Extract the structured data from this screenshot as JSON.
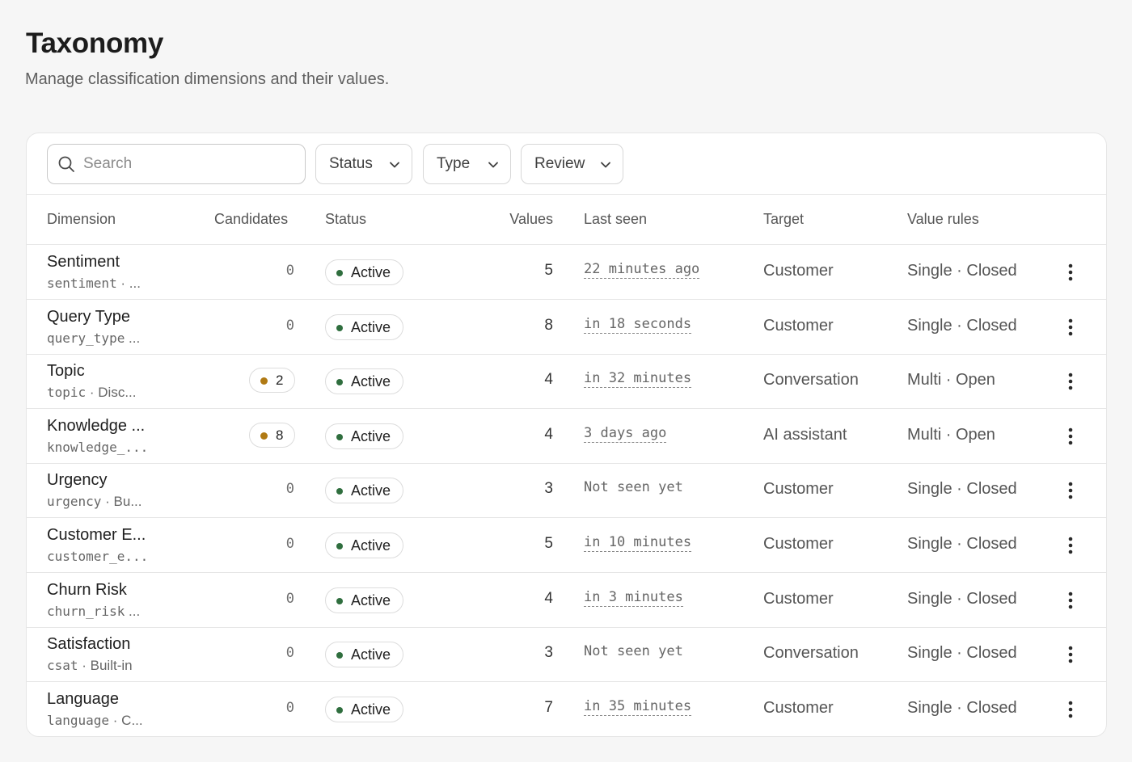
{
  "header": {
    "title": "Taxonomy",
    "subtitle": "Manage classification dimensions and their values."
  },
  "toolbar": {
    "search_placeholder": "Search",
    "filters": [
      "Status",
      "Type",
      "Review"
    ]
  },
  "table": {
    "columns": [
      "Dimension",
      "Candidates",
      "Status",
      "Values",
      "Last seen",
      "Target",
      "Value rules"
    ],
    "rows": [
      {
        "name": "Sentiment",
        "slug": "sentiment",
        "sub_suffix": " · ...",
        "candidates": "0",
        "candidate_pill": false,
        "status": "Active",
        "values": "5",
        "last_seen": "22 minutes ago",
        "last_seen_dashed": true,
        "target": "Customer",
        "rules": "Single · Closed"
      },
      {
        "name": "Query Type",
        "slug": "query_type",
        "sub_suffix": " ...",
        "candidates": "0",
        "candidate_pill": false,
        "status": "Active",
        "values": "8",
        "last_seen": "in 18 seconds",
        "last_seen_dashed": true,
        "target": "Customer",
        "rules": "Single · Closed"
      },
      {
        "name": "Topic",
        "slug": "topic",
        "sub_suffix": " · Disc...",
        "candidates": "2",
        "candidate_pill": true,
        "status": "Active",
        "values": "4",
        "last_seen": "in 32 minutes",
        "last_seen_dashed": true,
        "target": "Conversation",
        "rules": "Multi · Open"
      },
      {
        "name": "Knowledge ...",
        "slug": "knowledge_...",
        "sub_suffix": "",
        "candidates": "8",
        "candidate_pill": true,
        "status": "Active",
        "values": "4",
        "last_seen": "3 days ago",
        "last_seen_dashed": true,
        "target": "AI assistant",
        "rules": "Multi · Open"
      },
      {
        "name": "Urgency",
        "slug": "urgency",
        "sub_suffix": " · Bu...",
        "candidates": "0",
        "candidate_pill": false,
        "status": "Active",
        "values": "3",
        "last_seen": "Not seen yet",
        "last_seen_dashed": false,
        "target": "Customer",
        "rules": "Single · Closed"
      },
      {
        "name": "Customer E...",
        "slug": "customer_e...",
        "sub_suffix": "",
        "candidates": "0",
        "candidate_pill": false,
        "status": "Active",
        "values": "5",
        "last_seen": "in 10 minutes",
        "last_seen_dashed": true,
        "target": "Customer",
        "rules": "Single · Closed"
      },
      {
        "name": "Churn Risk",
        "slug": "churn_risk",
        "sub_suffix": " ...",
        "candidates": "0",
        "candidate_pill": false,
        "status": "Active",
        "values": "4",
        "last_seen": "in 3 minutes",
        "last_seen_dashed": true,
        "target": "Customer",
        "rules": "Single · Closed"
      },
      {
        "name": "Satisfaction",
        "slug": "csat",
        "sub_suffix": " · Built-in",
        "candidates": "0",
        "candidate_pill": false,
        "status": "Active",
        "values": "3",
        "last_seen": "Not seen yet",
        "last_seen_dashed": false,
        "target": "Conversation",
        "rules": "Single · Closed"
      },
      {
        "name": "Language",
        "slug": "language",
        "sub_suffix": " · C...",
        "candidates": "0",
        "candidate_pill": false,
        "status": "Active",
        "values": "7",
        "last_seen": "in 35 minutes",
        "last_seen_dashed": true,
        "target": "Customer",
        "rules": "Single · Closed"
      }
    ]
  },
  "colors": {
    "active_dot": "#2f6e3e",
    "candidate_dot": "#b07a14"
  },
  "icons": {
    "search": "search-icon",
    "chevron": "chevron-down-icon",
    "row_menu": "more-vertical-icon"
  }
}
